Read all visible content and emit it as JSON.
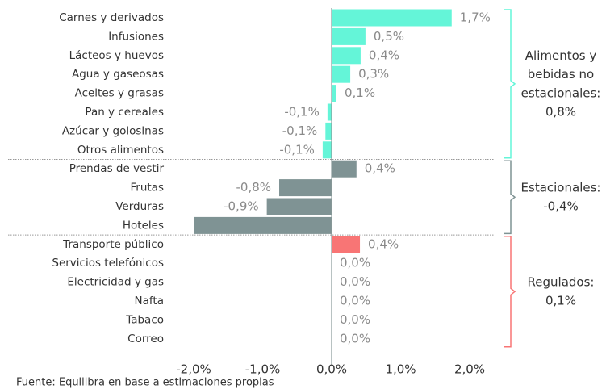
{
  "chart_data": {
    "type": "bar",
    "orientation": "horizontal",
    "series": [
      {
        "name": "Alimentos y bebidas no estacionales:",
        "value": 0.8,
        "value_label": "0,8%",
        "color": "#64f5d8",
        "text_color": "#20c9a0",
        "categories": [
          "Carnes y derivados",
          "Infusiones",
          "Lácteos y huevos",
          "Agua y gaseosas",
          "Aceites y grasas",
          "Pan y cereales",
          "Azúcar y golosinas",
          "Otros alimentos"
        ],
        "values": [
          1.74,
          0.49,
          0.42,
          0.27,
          0.07,
          -0.06,
          -0.09,
          -0.13
        ],
        "value_labels": [
          "1,7%",
          "0,5%",
          "0,4%",
          "0,3%",
          "0,1%",
          "-0,1%",
          "-0,1%",
          "-0,1%"
        ]
      },
      {
        "name": "Estacionales:",
        "value": -0.4,
        "value_label": "-0,4%",
        "color": "#7f9394",
        "text_color": "#7f9394",
        "categories": [
          "Prendas de vestir",
          "Frutas",
          "Verduras",
          "Hoteles"
        ],
        "values": [
          0.36,
          -0.76,
          -0.94,
          -2.0
        ],
        "value_labels": [
          "0,4%",
          "-0,8%",
          "-0,9%",
          null
        ]
      },
      {
        "name": "Regulados:",
        "value": 0.1,
        "value_label": "0,1%",
        "color": "#f87575",
        "text_color": "#f06a6a",
        "categories": [
          "Transporte público",
          "Servicios telefónicos",
          "Electricidad y gas",
          "Nafta",
          "Tabaco",
          "Correo"
        ],
        "values": [
          0.41,
          0,
          0,
          0,
          0,
          0
        ],
        "value_labels": [
          "0,4%",
          "0,0%",
          "0,0%",
          "0,0%",
          "0,0%",
          "0,0%"
        ]
      }
    ],
    "xlim": [
      -2.0,
      2.0
    ],
    "xticks": [
      {
        "value": -2,
        "label": "-2,0%"
      },
      {
        "value": -1,
        "label": "-1,0%"
      },
      {
        "value": 0,
        "label": "0,0%"
      },
      {
        "value": 1,
        "label": "1,0%"
      },
      {
        "value": 2,
        "label": "2,0%"
      }
    ],
    "source": "Fuente: Equilibra en base a estimaciones propias"
  }
}
